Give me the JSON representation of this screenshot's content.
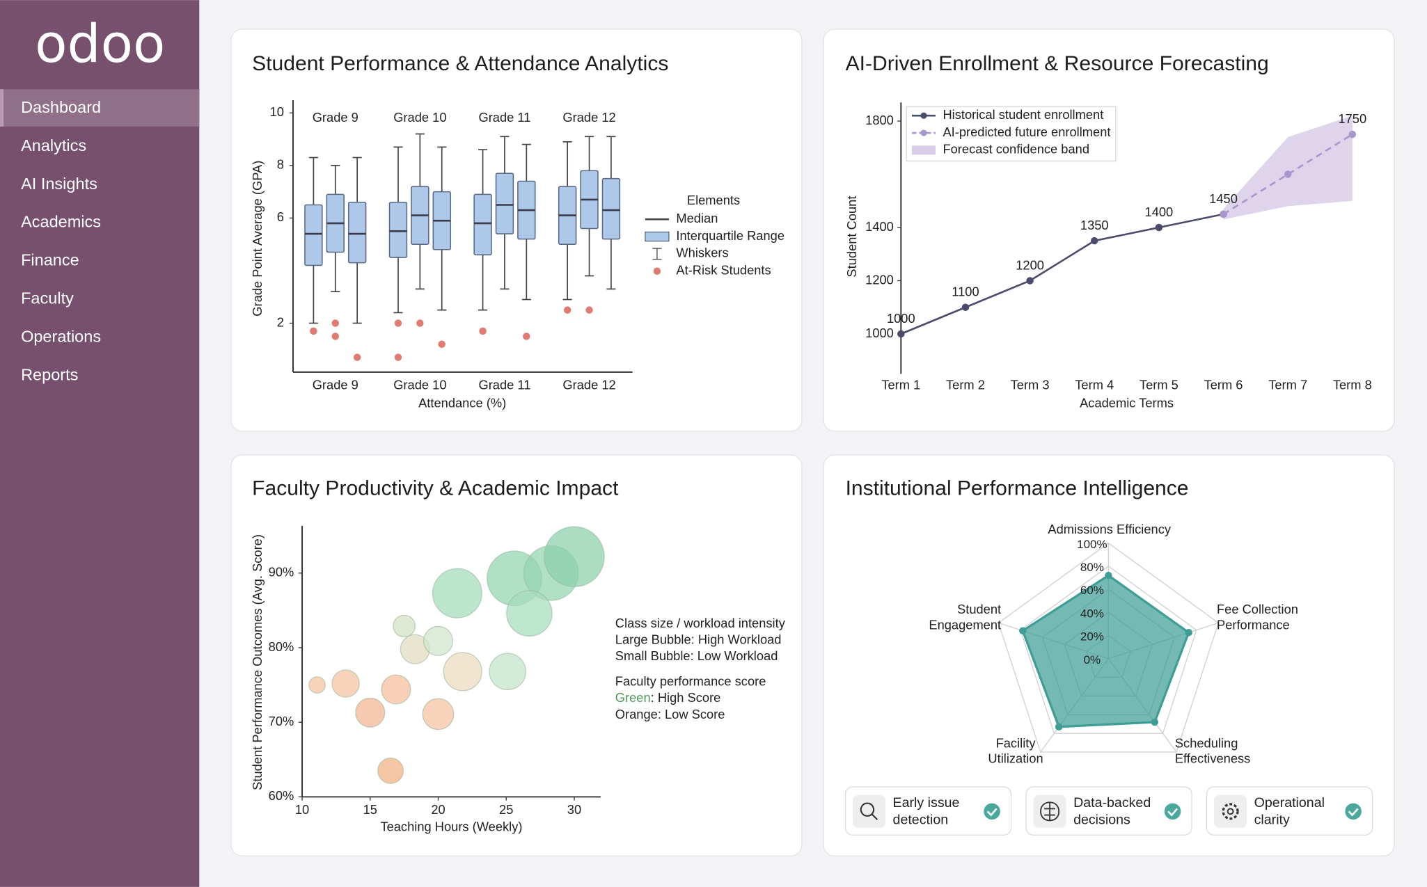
{
  "sidebar": {
    "logo": "odoo",
    "items": [
      "Dashboard",
      "Analytics",
      "AI Insights",
      "Academics",
      "Finance",
      "Faculty",
      "Operations",
      "Reports"
    ],
    "active": 0
  },
  "chart_data": [
    {
      "type": "box",
      "title": "Student Performance & Attendance Analytics",
      "xlabel": "Attendance (%)",
      "ylabel": "Grade Point Average (GPA)",
      "categories": [
        "Grade 9",
        "Grade 10",
        "Grade 11",
        "Grade 12"
      ],
      "ylim": [
        0,
        10
      ],
      "yticks": [
        2,
        6,
        8,
        10
      ],
      "color": "#aec8ea",
      "outlier_color": "#e07b72",
      "legend_title": "Elements",
      "legend": [
        "Median",
        "Interquartile Range",
        "Whiskers",
        "At-Risk Students"
      ],
      "groups": [
        {
          "boxes": [
            {
              "whisker_low": 2.0,
              "q1": 4.2,
              "median": 5.4,
              "q3": 6.5,
              "whisker_high": 8.3,
              "outliers": [
                1.7
              ]
            },
            {
              "whisker_low": 3.2,
              "q1": 4.7,
              "median": 5.8,
              "q3": 6.9,
              "whisker_high": 8.0,
              "outliers": [
                2.0,
                1.5
              ]
            },
            {
              "whisker_low": 2.0,
              "q1": 4.3,
              "median": 5.4,
              "q3": 6.6,
              "whisker_high": 8.3,
              "outliers": [
                0.7
              ]
            }
          ]
        },
        {
          "boxes": [
            {
              "whisker_low": 2.4,
              "q1": 4.5,
              "median": 5.5,
              "q3": 6.6,
              "whisker_high": 8.7,
              "outliers": [
                2.0,
                0.7
              ]
            },
            {
              "whisker_low": 3.3,
              "q1": 5.0,
              "median": 6.1,
              "q3": 7.2,
              "whisker_high": 9.2,
              "outliers": [
                2.0
              ]
            },
            {
              "whisker_low": 2.5,
              "q1": 4.8,
              "median": 5.9,
              "q3": 7.0,
              "whisker_high": 8.7,
              "outliers": [
                1.2
              ]
            }
          ]
        },
        {
          "boxes": [
            {
              "whisker_low": 2.5,
              "q1": 4.6,
              "median": 5.8,
              "q3": 6.9,
              "whisker_high": 8.6,
              "outliers": [
                1.7
              ]
            },
            {
              "whisker_low": 3.3,
              "q1": 5.4,
              "median": 6.5,
              "q3": 7.7,
              "whisker_high": 9.1,
              "outliers": []
            },
            {
              "whisker_low": 2.9,
              "q1": 5.2,
              "median": 6.3,
              "q3": 7.4,
              "whisker_high": 8.8,
              "outliers": [
                1.5
              ]
            }
          ]
        },
        {
          "boxes": [
            {
              "whisker_low": 2.9,
              "q1": 5.0,
              "median": 6.1,
              "q3": 7.2,
              "whisker_high": 8.9,
              "outliers": [
                2.5
              ]
            },
            {
              "whisker_low": 3.8,
              "q1": 5.6,
              "median": 6.7,
              "q3": 7.8,
              "whisker_high": 9.1,
              "outliers": [
                2.5
              ]
            },
            {
              "whisker_low": 3.3,
              "q1": 5.2,
              "median": 6.3,
              "q3": 7.5,
              "whisker_high": 9.1,
              "outliers": []
            }
          ]
        }
      ]
    },
    {
      "type": "line",
      "title": "AI-Driven Enrollment & Resource Forecasting",
      "xlabel": "Academic Terms",
      "ylabel": "Student Count",
      "categories": [
        "Term 1",
        "Term 2",
        "Term 3",
        "Term 4",
        "Term 5",
        "Term 6",
        "Term 7",
        "Term 8"
      ],
      "ylim": [
        850,
        1870
      ],
      "yticks": [
        1000,
        1200,
        1400,
        1800
      ],
      "series": [
        {
          "name": "Historical student enrollment",
          "color": "#4b4b6b",
          "values": [
            1000,
            1100,
            1200,
            1350,
            1400,
            1450,
            null,
            null
          ]
        },
        {
          "name": "AI-predicted future enrollment",
          "color": "#a897cc",
          "dashed": true,
          "values": [
            null,
            null,
            null,
            null,
            null,
            1450,
            1600,
            1750
          ]
        }
      ],
      "band": {
        "name": "Forecast confidence band",
        "color": "#d8cce8",
        "lower": [
          null,
          null,
          null,
          null,
          null,
          1430,
          1480,
          1500
        ],
        "upper": [
          null,
          null,
          null,
          null,
          null,
          1470,
          1740,
          1820
        ]
      }
    },
    {
      "type": "bubble",
      "title": "Faculty Productivity & Academic Impact",
      "xlabel": "Teaching Hours (Weekly)",
      "ylabel": "Student Performance Outcomes (Avg. Score)",
      "xlim": [
        10,
        32
      ],
      "xticks": [
        10,
        15,
        20,
        25,
        30
      ],
      "ylim": [
        60,
        96
      ],
      "yticks": [
        {
          "value": 60,
          "label": "60%"
        },
        {
          "value": 70,
          "label": "70%"
        },
        {
          "value": 80,
          "label": "80%"
        },
        {
          "value": 90,
          "label": "90%"
        }
      ],
      "x": [
        11.1,
        13.2,
        15.0,
        16.9,
        16.5,
        20.0,
        17.5,
        18.3,
        20.0,
        21.8,
        25.1,
        21.4,
        25.6,
        28.3,
        30.0,
        26.7
      ],
      "values": [
        75.0,
        75.2,
        71.3,
        74.4,
        63.5,
        71.1,
        82.9,
        79.8,
        80.9,
        76.8,
        76.8,
        87.3,
        89.3,
        90.0,
        92.2,
        84.6
      ],
      "sizes": [
        9,
        15,
        16,
        16,
        14,
        17,
        12,
        16,
        16,
        21,
        20,
        27,
        30,
        30,
        33,
        25
      ],
      "colors": [
        "#f6c4a4",
        "#f6c4a4",
        "#f4b796",
        "#f6c0a0",
        "#f2b384",
        "#f6c4a4",
        "#d2e2c4",
        "#e2dcc0",
        "#d2e6cc",
        "#ecdcc0",
        "#c4e4cc",
        "#a6dcbc",
        "#96d6b2",
        "#96d6b2",
        "#8ed2ac",
        "#a8dcbc"
      ],
      "annotations": [
        "Class size / workload intensity",
        "Large Bubble: High Workload",
        "Small Bubble: Low Workload",
        "Faculty performance score"
      ],
      "score_legend": [
        {
          "word": "Green",
          "color": "#4f9a5a",
          "text": ": High Score"
        },
        {
          "word": "Orange",
          "text": ": Low Score"
        }
      ]
    },
    {
      "type": "radar",
      "title": "Institutional Performance Intelligence",
      "axes": [
        {
          "lines": [
            "Admissions Efficiency"
          ]
        },
        {
          "lines": [
            "Fee Collection",
            "Performance"
          ]
        },
        {
          "lines": [
            "Scheduling",
            "Effectiveness"
          ]
        },
        {
          "lines": [
            "Facility",
            "Utilization"
          ]
        },
        {
          "lines": [
            "Student",
            "Engagement"
          ]
        }
      ],
      "values": [
        72,
        73,
        68,
        73,
        78
      ],
      "rlim": [
        0,
        100
      ],
      "rticks": [
        {
          "value": 100,
          "label": "100%"
        },
        {
          "value": 80,
          "label": "80%"
        },
        {
          "value": 60,
          "label": "60%"
        },
        {
          "value": 40,
          "label": "40%"
        },
        {
          "value": 20,
          "label": "20%"
        },
        {
          "value": 0,
          "label": "0%"
        }
      ],
      "color": "#3e9e96"
    }
  ],
  "badges": [
    {
      "lines": [
        "Early issue",
        "detection"
      ]
    },
    {
      "lines": [
        "Data-backed",
        "decisions"
      ]
    },
    {
      "lines": [
        "Operational",
        "clarity"
      ]
    }
  ]
}
